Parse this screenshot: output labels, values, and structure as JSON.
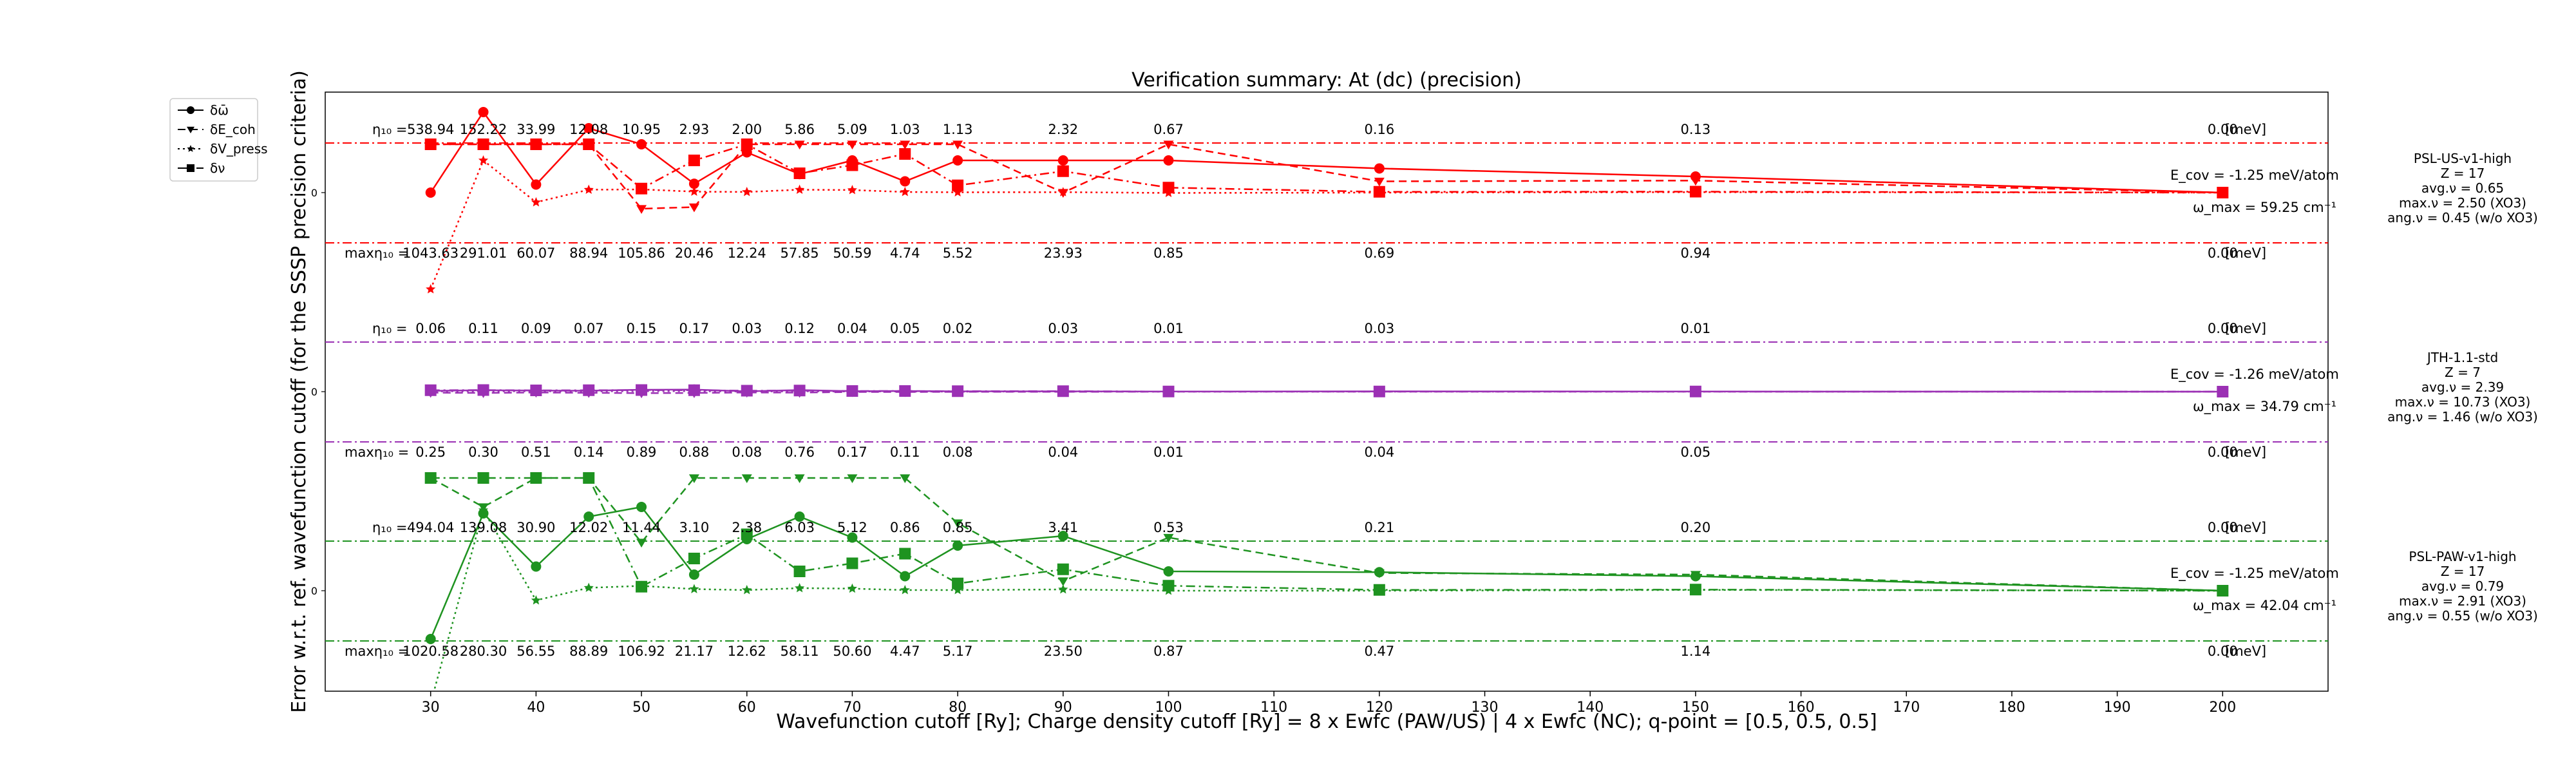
{
  "chart_data": {
    "type": "line",
    "title": "Verification summary: At (dc) (precision)",
    "xlabel": "Wavefunction cutoff [Ry]; Charge density cutoff [Ry] = 8 x Ewfc (PAW/US) | 4 x Ewfc (NC); q-point = [0.5, 0.5, 0.5]",
    "ylabel": "Error w.r.t. ref. wavefunction cutoff (for the SSSP precision criteria)",
    "xlim": [
      20,
      210
    ],
    "x_ticks": [
      30,
      40,
      50,
      60,
      70,
      80,
      90,
      100,
      110,
      120,
      130,
      140,
      150,
      160,
      170,
      180,
      190,
      200
    ],
    "grid": false,
    "legend_position": "top-left outside",
    "legend": [
      {
        "label": "δω̄",
        "marker": "circle",
        "dash": "solid"
      },
      {
        "label": "δE_coh",
        "marker": "triangle-down",
        "dash": "dashed"
      },
      {
        "label": "δV_press",
        "marker": "star",
        "dash": "dotted"
      },
      {
        "label": "δν",
        "marker": "square",
        "dash": "dash-dot"
      }
    ],
    "eta_label": "η₁₀ =",
    "max_eta_label": "maxη₁₀ =",
    "unit_label": "[meV]",
    "panels": [
      {
        "name": "PSL-US-v1-high",
        "color": "#ff0000",
        "info": [
          "PSL-US-v1-high",
          "Z = 17",
          "avg.ν = 0.65",
          "max.ν = 2.50 (XO3)",
          "ang.ν = 0.45 (w/o XO3)"
        ],
        "ecov": "E_cov = -1.25 meV/atom",
        "omega_max": "ω_max = 59.25 cm⁻¹",
        "eta_values": [
          "538.94",
          "152.22",
          "33.99",
          "12.08",
          "10.95",
          "2.93",
          "2.00",
          "5.86",
          "5.09",
          "1.03",
          "1.13",
          "2.32",
          "0.67",
          "0.16",
          "0.13",
          "0.00"
        ],
        "max_eta_values": [
          "1043.63",
          "291.01",
          "60.07",
          "88.94",
          "105.86",
          "20.46",
          "12.24",
          "57.85",
          "50.59",
          "4.74",
          "5.52",
          "23.93",
          "0.85",
          "0.69",
          "0.94",
          "0.00"
        ],
        "series": [
          {
            "name": "δω̄",
            "x": [
              30,
              35,
              40,
              45,
              50,
              55,
              60,
              65,
              70,
              75,
              80,
              90,
              100,
              120,
              150,
              200
            ],
            "y": [
              0.0,
              5.0,
              0.5,
              4.0,
              3.0,
              0.55,
              2.5,
              1.15,
              2.0,
              0.7,
              2.0,
              2.0,
              2.0,
              1.5,
              1.0,
              0.0
            ]
          },
          {
            "name": "δE_coh",
            "x": [
              30,
              35,
              40,
              45,
              50,
              55,
              60,
              65,
              70,
              75,
              80,
              90,
              100,
              120,
              150,
              200
            ],
            "y": [
              3.0,
              3.0,
              3.0,
              3.0,
              -1.0,
              -0.9,
              3.0,
              3.0,
              3.0,
              3.0,
              3.0,
              0.0,
              3.0,
              0.7,
              0.75,
              0.0
            ]
          },
          {
            "name": "δV_press",
            "x": [
              30,
              35,
              40,
              45,
              50,
              55,
              60,
              65,
              70,
              75,
              80,
              90,
              100,
              120,
              150,
              200
            ],
            "y": [
              -6.0,
              2.0,
              -0.6,
              0.18,
              0.2,
              0.06,
              0.04,
              0.18,
              0.16,
              0.04,
              0.02,
              0.03,
              -0.02,
              0.0,
              0.03,
              0.0
            ]
          },
          {
            "name": "δν",
            "x": [
              30,
              35,
              40,
              45,
              50,
              55,
              60,
              65,
              70,
              75,
              80,
              90,
              100,
              120,
              150,
              200
            ],
            "y": [
              3.0,
              3.0,
              3.0,
              3.0,
              0.25,
              2.0,
              3.0,
              1.2,
              1.7,
              2.4,
              0.45,
              1.33,
              0.31,
              0.05,
              0.06,
              0.0
            ]
          }
        ]
      },
      {
        "name": "JTH-1.1-std",
        "color": "#9b30b4",
        "info": [
          "JTH-1.1-std",
          "Z = 7",
          "avg.ν = 2.39",
          "max.ν = 10.73 (XO3)",
          "ang.ν = 1.46 (w/o XO3)"
        ],
        "ecov": "E_cov = -1.26 meV/atom",
        "omega_max": "ω_max = 34.79 cm⁻¹",
        "eta_values": [
          "0.06",
          "0.11",
          "0.09",
          "0.07",
          "0.15",
          "0.17",
          "0.03",
          "0.12",
          "0.04",
          "0.05",
          "0.02",
          "0.03",
          "0.01",
          "0.03",
          "0.01",
          "0.00"
        ],
        "max_eta_values": [
          "0.25",
          "0.30",
          "0.51",
          "0.14",
          "0.89",
          "0.88",
          "0.08",
          "0.76",
          "0.17",
          "0.11",
          "0.08",
          "0.04",
          "0.01",
          "0.04",
          "0.05",
          "0.00"
        ],
        "series": [
          {
            "name": "δω̄",
            "x": [
              30,
              35,
              40,
              45,
              50,
              55,
              60,
              65,
              70,
              75,
              80,
              90,
              100,
              120,
              150,
              200
            ],
            "y": [
              0.05,
              0.09,
              0.07,
              0.06,
              0.12,
              0.13,
              0.02,
              0.1,
              0.03,
              0.04,
              0.02,
              0.02,
              0.01,
              0.02,
              0.01,
              0.0
            ]
          },
          {
            "name": "δE_coh",
            "x": [
              30,
              35,
              40,
              45,
              50,
              55,
              60,
              65,
              70,
              75,
              80,
              90,
              100,
              120,
              150,
              200
            ],
            "y": [
              -0.06,
              -0.08,
              -0.05,
              -0.07,
              -0.09,
              -0.08,
              -0.05,
              -0.06,
              -0.02,
              -0.02,
              -0.01,
              -0.01,
              0.0,
              0.0,
              0.0,
              0.0
            ]
          },
          {
            "name": "δV_press",
            "x": [
              30,
              35,
              40,
              45,
              50,
              55,
              60,
              65,
              70,
              75,
              80,
              90,
              100,
              120,
              150,
              200
            ],
            "y": [
              0.02,
              0.03,
              0.02,
              0.02,
              0.03,
              0.03,
              0.01,
              0.02,
              0.01,
              0.01,
              0.0,
              0.01,
              0.0,
              0.0,
              0.0,
              0.0
            ]
          },
          {
            "name": "δν",
            "x": [
              30,
              35,
              40,
              45,
              50,
              55,
              60,
              65,
              70,
              75,
              80,
              90,
              100,
              120,
              150,
              200
            ],
            "y": [
              0.09,
              0.1,
              0.08,
              0.09,
              0.1,
              0.09,
              0.06,
              0.07,
              0.04,
              0.04,
              0.03,
              0.03,
              0.01,
              0.01,
              0.01,
              0.0
            ]
          }
        ]
      },
      {
        "name": "PSL-PAW-v1-high",
        "color": "#1e9320",
        "info": [
          "PSL-PAW-v1-high",
          "Z = 17",
          "avg.ν = 0.79",
          "max.ν = 2.91 (XO3)",
          "ang.ν = 0.55 (w/o XO3)"
        ],
        "ecov": "E_cov = -1.25 meV/atom",
        "omega_max": "ω_max = 42.04 cm⁻¹",
        "eta_values": [
          "494.04",
          "139.08",
          "30.90",
          "12.02",
          "11.44",
          "3.10",
          "2.38",
          "6.03",
          "5.12",
          "0.86",
          "0.85",
          "3.41",
          "0.53",
          "0.21",
          "0.20",
          "0.00"
        ],
        "max_eta_values": [
          "1020.58",
          "280.30",
          "56.55",
          "88.89",
          "106.92",
          "21.17",
          "12.62",
          "58.11",
          "50.60",
          "4.47",
          "5.17",
          "23.50",
          "0.87",
          "0.47",
          "1.14",
          "0.00"
        ],
        "series": [
          {
            "name": "δω̄",
            "x": [
              30,
              35,
              40,
              45,
              50,
              55,
              60,
              65,
              70,
              75,
              80,
              90,
              100,
              120,
              150,
              200
            ],
            "y": [
              -3.0,
              4.8,
              1.5,
              4.6,
              5.2,
              1.0,
              3.2,
              4.6,
              3.3,
              0.9,
              2.8,
              3.4,
              1.2,
              1.15,
              0.9,
              0.0
            ]
          },
          {
            "name": "δE_coh",
            "x": [
              30,
              35,
              40,
              45,
              50,
              55,
              60,
              65,
              70,
              75,
              80,
              90,
              100,
              120,
              150,
              200
            ],
            "y": [
              7.0,
              5.2,
              7.0,
              7.0,
              3.0,
              7.0,
              7.0,
              7.0,
              7.0,
              7.0,
              4.2,
              0.6,
              3.3,
              1.1,
              1.0,
              0.0
            ]
          },
          {
            "name": "δV_press",
            "x": [
              30,
              35,
              40,
              45,
              50,
              55,
              60,
              65,
              70,
              75,
              80,
              90,
              100,
              120,
              150,
              200
            ],
            "y": [
              -7.0,
              5.0,
              -0.6,
              0.18,
              0.3,
              0.1,
              0.04,
              0.16,
              0.13,
              0.04,
              0.04,
              0.08,
              0.0,
              0.0,
              0.05,
              0.0
            ]
          },
          {
            "name": "δν",
            "x": [
              30,
              35,
              40,
              45,
              50,
              55,
              60,
              65,
              70,
              75,
              80,
              90,
              100,
              120,
              150,
              200
            ],
            "y": [
              7.0,
              7.0,
              7.0,
              7.0,
              0.25,
              2.0,
              3.5,
              1.2,
              1.7,
              2.3,
              0.45,
              1.33,
              0.31,
              0.05,
              0.07,
              0.0
            ]
          }
        ]
      }
    ]
  }
}
